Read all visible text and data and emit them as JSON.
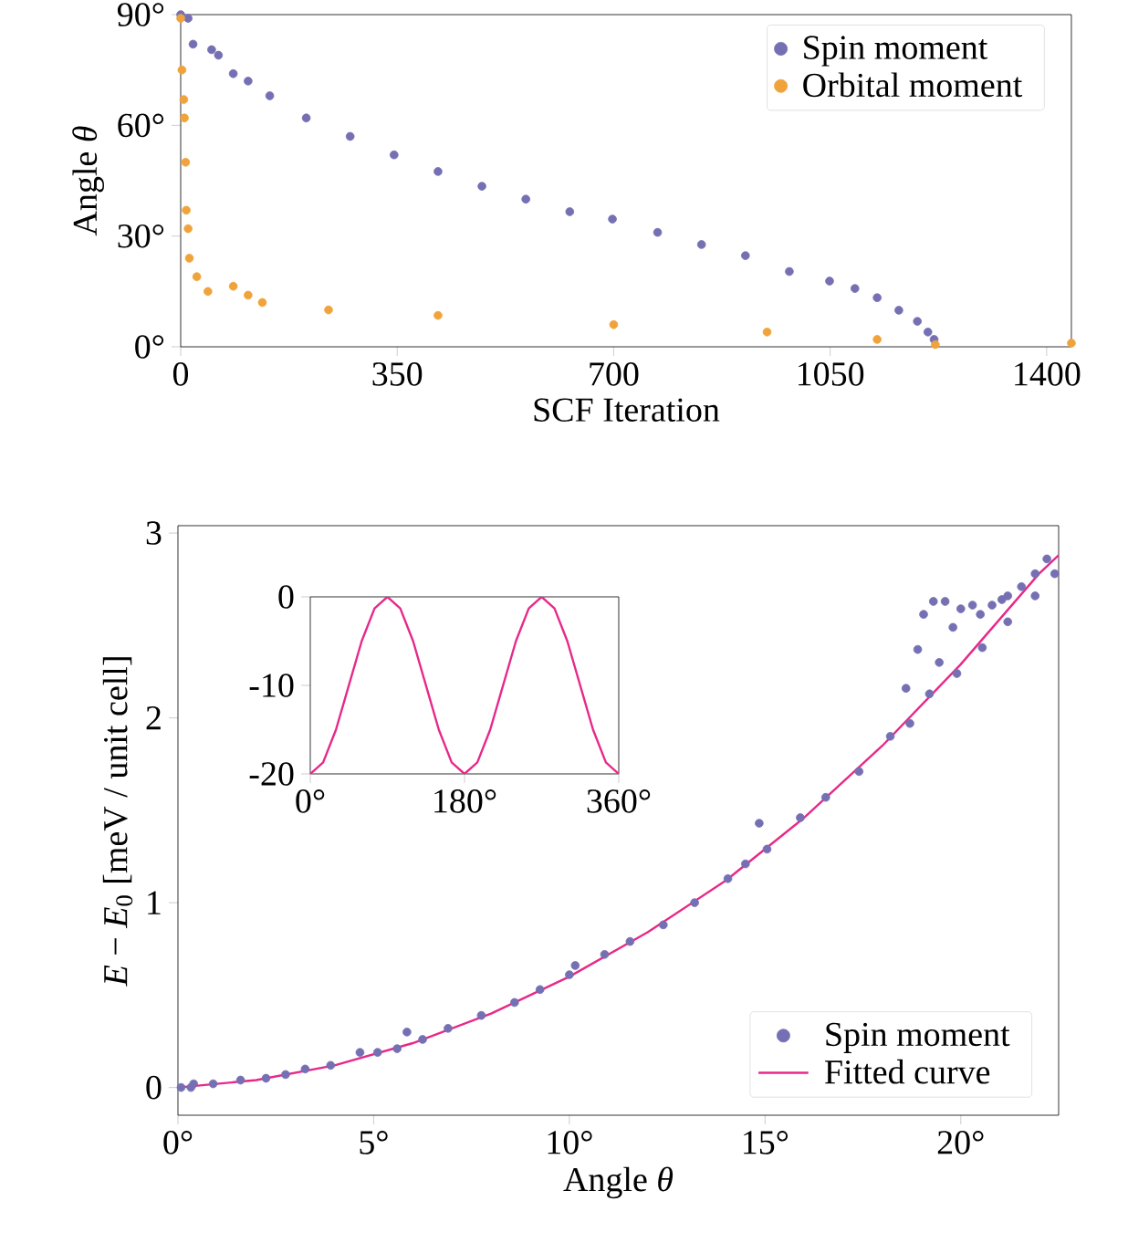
{
  "chart_data": [
    {
      "type": "scatter",
      "xlabel": "SCF Iteration",
      "ylabel": "Angle *θ*",
      "xlim": [
        0,
        1440
      ],
      "ylim": [
        0,
        90
      ],
      "xticks": [
        0,
        350,
        700,
        1050,
        1400
      ],
      "yticks": [
        {
          "value": 0,
          "label": "0°"
        },
        {
          "value": 30,
          "label": "30°"
        },
        {
          "value": 60,
          "label": "60°"
        },
        {
          "value": 90,
          "label": "90°"
        }
      ],
      "legend": "top right",
      "marker": "circle",
      "series": [
        {
          "name": "Spin moment",
          "color": "#7570b3",
          "x": [
            0,
            12,
            20,
            50,
            61,
            85,
            109,
            144,
            203,
            274,
            345,
            416,
            487,
            558,
            629,
            698,
            771,
            842,
            913,
            984,
            1049,
            1090,
            1126,
            1161,
            1191,
            1208,
            1218
          ],
          "values": [
            90,
            89,
            82,
            80.5,
            79,
            74,
            72,
            68,
            62,
            57,
            52,
            47.5,
            43.5,
            40,
            36.6,
            34.6,
            31,
            27.7,
            24.7,
            20.4,
            17.8,
            15.8,
            13.3,
            9.9,
            6.9,
            4,
            2
          ]
        },
        {
          "name": "Orbital moment",
          "color": "#f0a33a",
          "x": [
            0,
            2,
            5,
            6,
            8,
            9,
            12,
            14,
            26,
            44,
            85,
            109,
            132,
            239,
            416,
            700,
            948,
            1126,
            1220,
            1440
          ],
          "values": [
            89,
            75,
            67,
            62,
            50,
            37,
            32,
            24,
            19,
            15,
            16.4,
            14,
            12,
            10,
            8.5,
            6,
            4,
            2,
            0.6,
            1
          ]
        }
      ]
    },
    {
      "type": "scatter",
      "xlabel": "Angle *θ*",
      "ylabel": "*E* − *E*$_{0}$ [meV / unit cell]",
      "xlim": [
        0,
        22.5
      ],
      "ylim": [
        -0.15,
        3.04
      ],
      "xticks": [
        {
          "value": 0,
          "label": "0°"
        },
        {
          "value": 5,
          "label": "5°"
        },
        {
          "value": 10,
          "label": "10°"
        },
        {
          "value": 15,
          "label": "15°"
        },
        {
          "value": 20,
          "label": "20°"
        }
      ],
      "yticks": [
        0,
        1,
        2,
        3
      ],
      "legend": "bottom right",
      "series": [
        {
          "name": "Spin moment",
          "marker": "circle",
          "color": "#7570b3",
          "x": [
            0.08,
            0.33,
            0.4,
            0.9,
            1.6,
            2.25,
            2.75,
            3.25,
            3.9,
            4.65,
            5.1,
            5.6,
            5.85,
            6.25,
            6.9,
            7.75,
            8.6,
            9.25,
            10,
            10.15,
            10.9,
            11.55,
            12.4,
            13.2,
            14.05,
            14.5,
            14.85,
            15.05,
            15.9,
            16.55,
            17.4,
            18.2,
            18.6,
            18.7,
            18.9,
            19.05,
            19.2,
            19.3,
            19.45,
            19.6,
            19.8,
            19.9,
            20,
            20.3,
            20.5,
            20.55,
            20.8,
            21.05,
            21.2,
            21.2,
            21.55,
            21.9,
            21.9,
            22.2,
            22.4
          ],
          "values": [
            0,
            0,
            0.02,
            0.02,
            0.04,
            0.05,
            0.07,
            0.1,
            0.12,
            0.19,
            0.19,
            0.21,
            0.3,
            0.26,
            0.32,
            0.39,
            0.46,
            0.53,
            0.61,
            0.66,
            0.72,
            0.79,
            0.88,
            1.0,
            1.13,
            1.21,
            1.43,
            1.29,
            1.46,
            1.57,
            1.71,
            1.9,
            2.16,
            1.97,
            2.37,
            2.56,
            2.13,
            2.63,
            2.3,
            2.63,
            2.49,
            2.24,
            2.59,
            2.61,
            2.56,
            2.38,
            2.61,
            2.64,
            2.66,
            2.52,
            2.71,
            2.78,
            2.66,
            2.86,
            2.78
          ]
        },
        {
          "name": "Fitted curve",
          "type": "line",
          "color": "#e7298a",
          "x": [
            0,
            2,
            4,
            6,
            8,
            10,
            12,
            14,
            16,
            18,
            20,
            22,
            22.5
          ],
          "values": [
            0,
            0.04,
            0.12,
            0.24,
            0.4,
            0.6,
            0.84,
            1.12,
            1.46,
            1.85,
            2.29,
            2.78,
            2.88
          ]
        }
      ]
    },
    {
      "type": "line",
      "xlim": [
        0,
        360
      ],
      "ylim": [
        -20,
        0
      ],
      "xticks": [
        {
          "value": 0,
          "label": "0°"
        },
        {
          "value": 180,
          "label": "180°"
        },
        {
          "value": 360,
          "label": "360°"
        }
      ],
      "yticks": [
        -20,
        -10,
        0
      ],
      "series": [
        {
          "color": "#e7298a",
          "x": [
            0,
            15,
            30,
            45,
            60,
            75,
            90,
            105,
            120,
            135,
            150,
            165,
            180,
            195,
            210,
            225,
            240,
            255,
            270,
            285,
            300,
            315,
            330,
            345,
            360
          ],
          "values": [
            -20,
            -18.7,
            -15,
            -10,
            -5,
            -1.3,
            0,
            -1.3,
            -5,
            -10,
            -15,
            -18.7,
            -20,
            -18.7,
            -15,
            -10,
            -5,
            -1.3,
            0,
            -1.3,
            -5,
            -10,
            -15,
            -18.7,
            -20
          ]
        }
      ]
    }
  ]
}
